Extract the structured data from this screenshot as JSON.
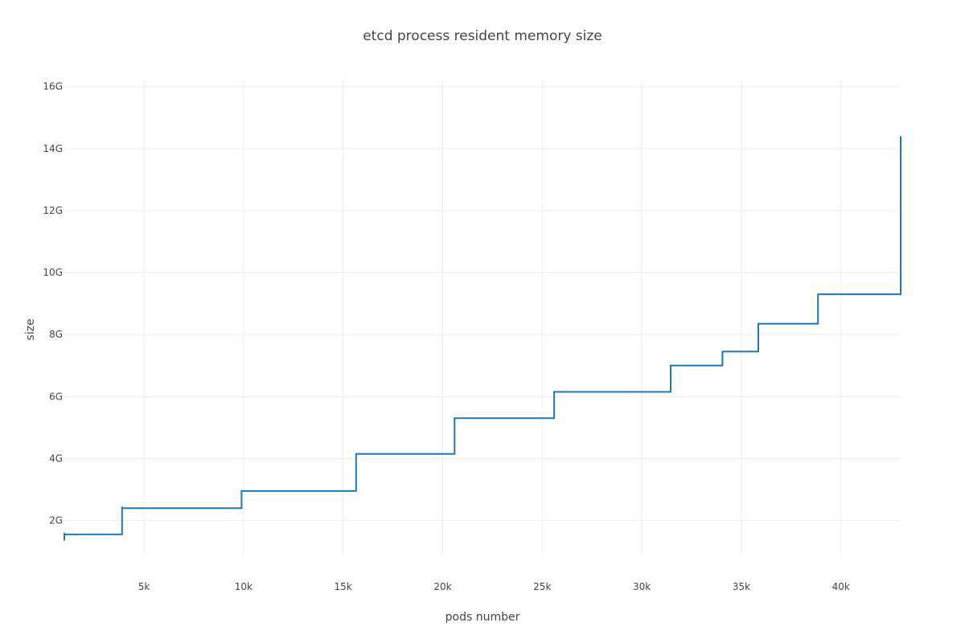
{
  "chart_data": {
    "type": "line",
    "line_shape": "step",
    "title": "etcd process resident memory size",
    "xlabel": "pods number",
    "ylabel": "size",
    "xlim": [
      1000,
      43000
    ],
    "ylim": [
      0.9,
      16.2
    ],
    "x_ticks": [
      {
        "value": 5000,
        "label": "5k"
      },
      {
        "value": 10000,
        "label": "10k"
      },
      {
        "value": 15000,
        "label": "15k"
      },
      {
        "value": 20000,
        "label": "20k"
      },
      {
        "value": 25000,
        "label": "25k"
      },
      {
        "value": 30000,
        "label": "30k"
      },
      {
        "value": 35000,
        "label": "35k"
      },
      {
        "value": 40000,
        "label": "40k"
      }
    ],
    "y_ticks": [
      {
        "value": 2,
        "label": "2G"
      },
      {
        "value": 4,
        "label": "4G"
      },
      {
        "value": 6,
        "label": "6G"
      },
      {
        "value": 8,
        "label": "8G"
      },
      {
        "value": 10,
        "label": "10G"
      },
      {
        "value": 12,
        "label": "12G"
      },
      {
        "value": 14,
        "label": "14G"
      },
      {
        "value": 16,
        "label": "16G"
      }
    ],
    "grid": true,
    "series": [
      {
        "name": "resident memory",
        "color": "#1f77b4",
        "x": [
          1000,
          1000,
          1000,
          3900,
          3900,
          3900,
          3900,
          9900,
          9900,
          15650,
          15650,
          20600,
          20600,
          25600,
          25600,
          31450,
          31450,
          34050,
          34050,
          35850,
          35850,
          38850,
          38850,
          43000,
          43000,
          43000,
          43000,
          43000
        ],
        "y": [
          1.35,
          1.6,
          1.55,
          1.65,
          2.45,
          2.3,
          2.4,
          2.4,
          2.95,
          2.95,
          4.15,
          4.15,
          5.3,
          5.3,
          6.15,
          6.15,
          7.0,
          7.0,
          7.45,
          7.45,
          8.35,
          8.35,
          9.3,
          9.3,
          10.6,
          14.4,
          10.6,
          11.0
        ]
      }
    ]
  }
}
